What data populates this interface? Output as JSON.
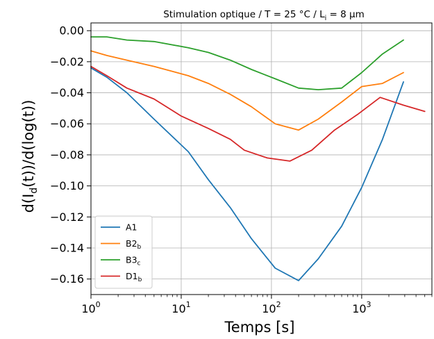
{
  "chart_data": {
    "type": "line",
    "title": "Stimulation optique / T = 25 °C / L",
    "title_sub": "i",
    "title_tail": " = 8 µm",
    "xlabel": "Temps [s]",
    "ylabel_main": "d(I",
    "ylabel_sub": "d",
    "ylabel_tail": "(t))/d(log(t))",
    "x_scale": "log",
    "xlim": [
      1,
      6000
    ],
    "ylim": [
      -0.17,
      0.005
    ],
    "x_ticks": [
      1,
      10,
      100,
      1000
    ],
    "x_tick_base": "10",
    "x_tick_exponents": [
      "0",
      "1",
      "2",
      "3"
    ],
    "y_ticks": [
      0.0,
      -0.02,
      -0.04,
      -0.06,
      -0.08,
      -0.1,
      -0.12,
      -0.14,
      -0.16
    ],
    "y_tick_labels": [
      "0.00",
      "−0.02",
      "−0.04",
      "−0.06",
      "−0.08",
      "−0.10",
      "−0.12",
      "−0.14",
      "−0.16"
    ],
    "grid": true,
    "legend_position": "lower-left",
    "series": [
      {
        "name": "A1",
        "name_sub": "",
        "color": "#1f77b4",
        "points": [
          [
            1,
            -0.024
          ],
          [
            1.5,
            -0.03
          ],
          [
            2.5,
            -0.04
          ],
          [
            5,
            -0.057
          ],
          [
            12,
            -0.078
          ],
          [
            20,
            -0.096
          ],
          [
            35,
            -0.114
          ],
          [
            60,
            -0.134
          ],
          [
            110,
            -0.153
          ],
          [
            200,
            -0.161
          ],
          [
            330,
            -0.147
          ],
          [
            600,
            -0.126
          ],
          [
            1000,
            -0.101
          ],
          [
            1700,
            -0.07
          ],
          [
            2900,
            -0.033
          ]
        ]
      },
      {
        "name": "B2",
        "name_sub": "b",
        "color": "#ff7f0e",
        "points": [
          [
            1,
            -0.013
          ],
          [
            1.5,
            -0.016
          ],
          [
            2.5,
            -0.019
          ],
          [
            5,
            -0.023
          ],
          [
            12,
            -0.029
          ],
          [
            20,
            -0.034
          ],
          [
            35,
            -0.041
          ],
          [
            60,
            -0.049
          ],
          [
            110,
            -0.06
          ],
          [
            200,
            -0.064
          ],
          [
            330,
            -0.057
          ],
          [
            600,
            -0.046
          ],
          [
            1000,
            -0.036
          ],
          [
            1700,
            -0.034
          ],
          [
            2900,
            -0.027
          ]
        ]
      },
      {
        "name": "B3",
        "name_sub": "c",
        "color": "#2ca02c",
        "points": [
          [
            1,
            -0.004
          ],
          [
            1.5,
            -0.004
          ],
          [
            2.5,
            -0.006
          ],
          [
            5,
            -0.007
          ],
          [
            12,
            -0.011
          ],
          [
            20,
            -0.014
          ],
          [
            35,
            -0.019
          ],
          [
            60,
            -0.025
          ],
          [
            110,
            -0.031
          ],
          [
            200,
            -0.037
          ],
          [
            330,
            -0.038
          ],
          [
            600,
            -0.037
          ],
          [
            1000,
            -0.027
          ],
          [
            1700,
            -0.015
          ],
          [
            2900,
            -0.006
          ]
        ]
      },
      {
        "name": "D1",
        "name_sub": "b",
        "color": "#d62728",
        "points": [
          [
            1,
            -0.023
          ],
          [
            1.5,
            -0.029
          ],
          [
            2.5,
            -0.037
          ],
          [
            5,
            -0.044
          ],
          [
            10,
            -0.055
          ],
          [
            20,
            -0.063
          ],
          [
            35,
            -0.07
          ],
          [
            50,
            -0.077
          ],
          [
            90,
            -0.082
          ],
          [
            160,
            -0.084
          ],
          [
            280,
            -0.077
          ],
          [
            500,
            -0.064
          ],
          [
            900,
            -0.054
          ],
          [
            1600,
            -0.043
          ],
          [
            2900,
            -0.048
          ],
          [
            5000,
            -0.052
          ]
        ]
      }
    ]
  }
}
